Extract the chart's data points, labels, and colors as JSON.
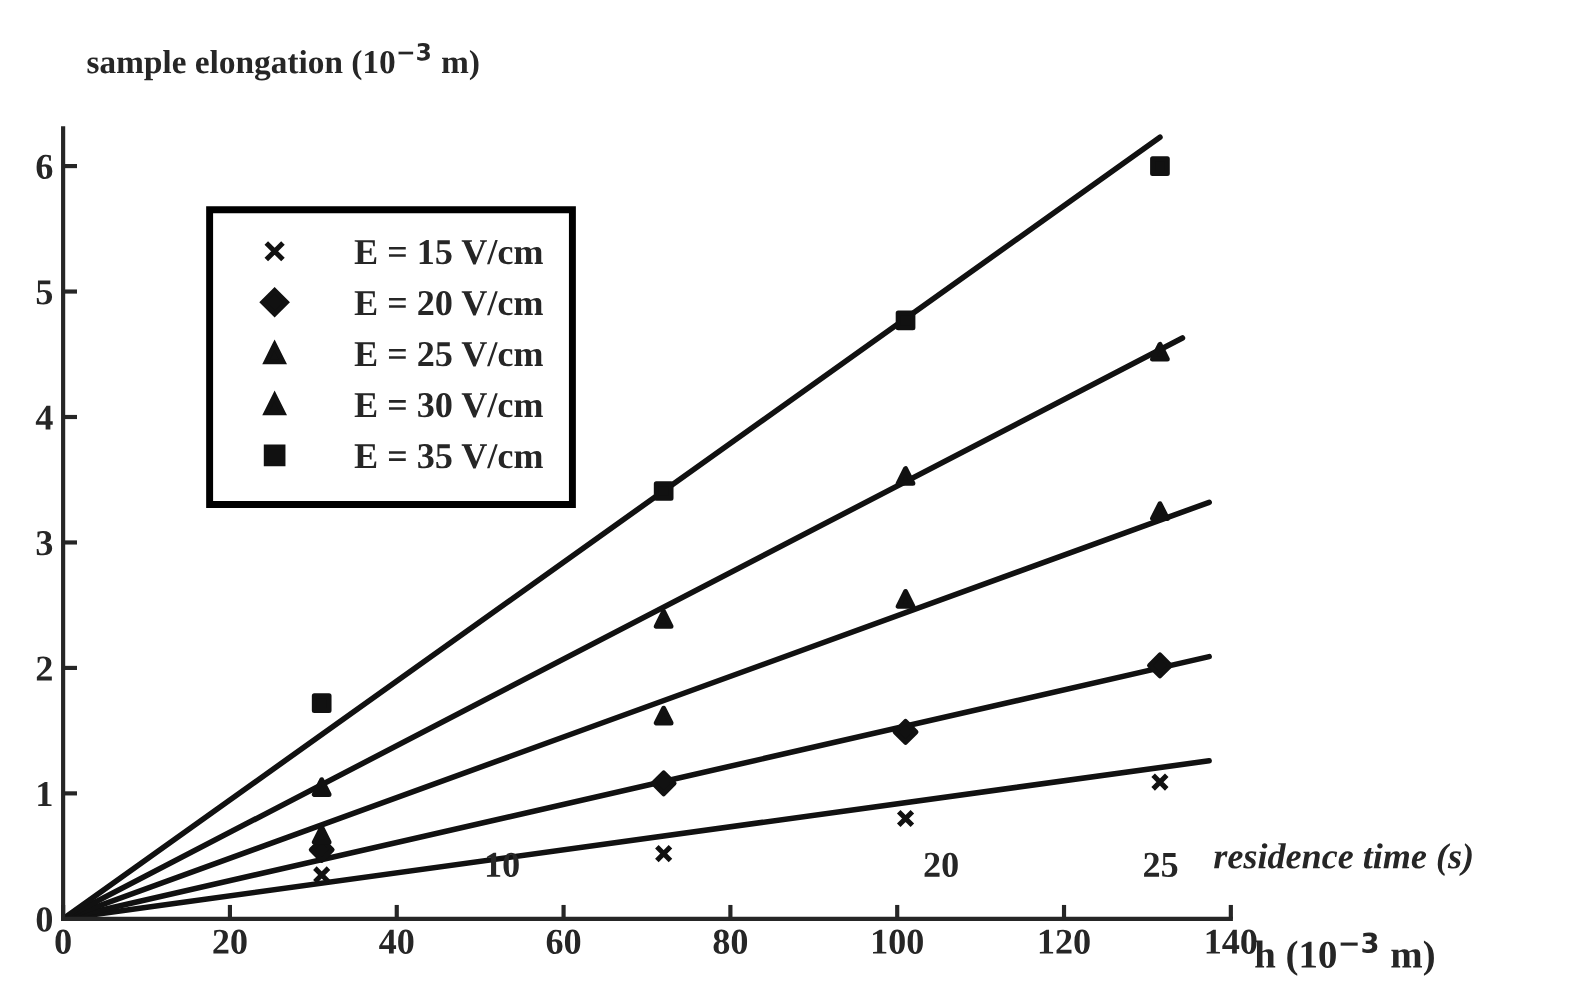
{
  "chart_data": {
    "type": "scatter",
    "ylabel": "sample elongation (10$^{−3}$ m)",
    "xlabel": "h (10$^{−3}$ m)",
    "x2label": "residence time (s)",
    "xlim": [
      0,
      140
    ],
    "xticks": [
      0,
      20,
      40,
      60,
      80,
      100,
      120,
      140
    ],
    "ylim": [
      0,
      6.3
    ],
    "yticks": [
      0,
      1,
      2,
      3,
      4,
      5,
      6
    ],
    "x2lim": [
      0,
      26.6
    ],
    "x2ticks": [
      10,
      20,
      25
    ],
    "legend": "top left",
    "grid": false,
    "series": [
      {
        "name": "E = 15 V/cm",
        "color": "#111111",
        "marker": "cross",
        "x": [
          31,
          72,
          101,
          131.5
        ],
        "values": [
          0.35,
          0.52,
          0.8,
          1.09
        ]
      },
      {
        "name": "E = 20 V/cm",
        "color": "#111111",
        "marker": "diamond",
        "x": [
          31,
          72,
          101,
          131.5
        ],
        "values": [
          0.55,
          1.08,
          1.49,
          2.02
        ]
      },
      {
        "name": "E = 25 V/cm",
        "color": "#111111",
        "marker": "triangle",
        "x": [
          31,
          72,
          101,
          131.5
        ],
        "values": [
          0.67,
          1.62,
          2.55,
          3.25
        ]
      },
      {
        "name": "E = 30 V/cm",
        "color": "#111111",
        "marker": "triangle",
        "x": [
          31,
          72,
          101,
          131.5
        ],
        "values": [
          1.05,
          2.39,
          3.53,
          4.52
        ]
      },
      {
        "name": "E = 35 V/cm",
        "color": "#111111",
        "marker": "square",
        "x": [
          31,
          72,
          101,
          131.5
        ],
        "values": [
          1.72,
          3.41,
          4.77,
          6.0
        ]
      },
      {
        "type": "line",
        "color": "#111111",
        "line_style": "solid",
        "x": [
          0,
          137.4
        ],
        "values": [
          0,
          1.26
        ]
      },
      {
        "type": "line",
        "color": "#111111",
        "line_style": "solid",
        "x": [
          0,
          137.4
        ],
        "values": [
          0,
          2.09
        ]
      },
      {
        "type": "line",
        "color": "#111111",
        "line_style": "solid",
        "x": [
          0,
          137.4
        ],
        "values": [
          0,
          3.32
        ]
      },
      {
        "type": "line",
        "color": "#111111",
        "line_style": "solid",
        "x": [
          0,
          134.2
        ],
        "values": [
          0,
          4.63
        ]
      },
      {
        "type": "line",
        "color": "#111111",
        "line_style": "solid",
        "x": [
          0,
          131.5
        ],
        "values": [
          0,
          6.23
        ]
      }
    ]
  }
}
